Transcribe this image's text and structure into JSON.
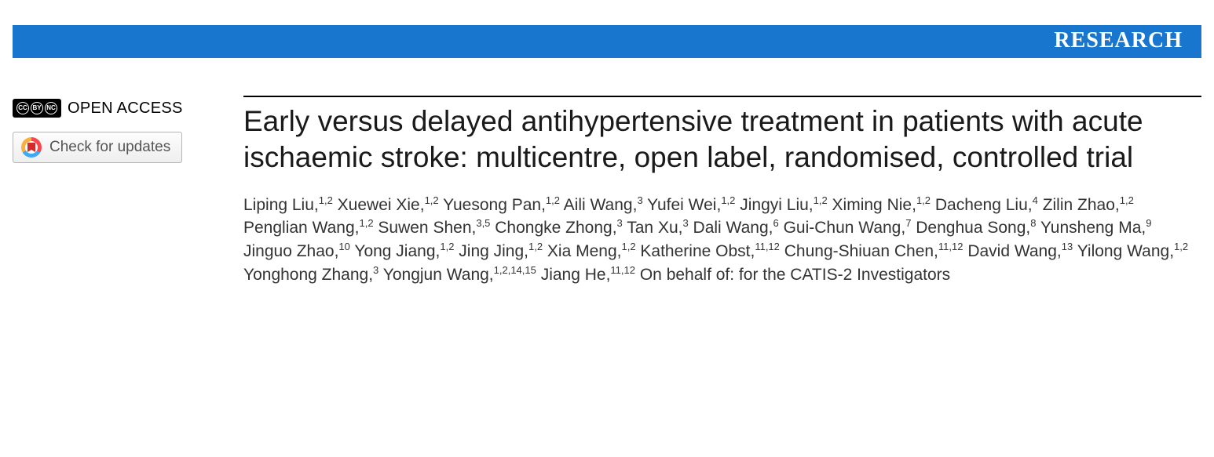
{
  "banner": {
    "label": "RESEARCH",
    "bg_color": "#1876cf",
    "text_color": "#ffffff"
  },
  "sidebar": {
    "open_access_label": "OPEN ACCESS",
    "cc_glyphs": [
      "CC",
      "BY",
      "NC"
    ],
    "updates_button_label": "Check for updates"
  },
  "article": {
    "title": "Early versus delayed antihypertensive treatment in patients with acute ischaemic stroke: multicentre, open label, randomised, controlled trial",
    "authors": [
      {
        "name": "Liping Liu",
        "aff": "1,2"
      },
      {
        "name": "Xuewei Xie",
        "aff": "1,2"
      },
      {
        "name": "Yuesong Pan",
        "aff": "1,2"
      },
      {
        "name": "Aili Wang",
        "aff": "3"
      },
      {
        "name": "Yufei Wei",
        "aff": "1,2"
      },
      {
        "name": "Jingyi Liu",
        "aff": "1,2"
      },
      {
        "name": "Ximing Nie",
        "aff": "1,2"
      },
      {
        "name": "Dacheng Liu",
        "aff": "4"
      },
      {
        "name": "Zilin Zhao",
        "aff": "1,2"
      },
      {
        "name": "Penglian Wang",
        "aff": "1,2"
      },
      {
        "name": "Suwen Shen",
        "aff": "3,5"
      },
      {
        "name": "Chongke Zhong",
        "aff": "3"
      },
      {
        "name": "Tan Xu",
        "aff": "3"
      },
      {
        "name": "Dali Wang",
        "aff": "6"
      },
      {
        "name": "Gui-Chun Wang",
        "aff": "7"
      },
      {
        "name": "Denghua Song",
        "aff": "8"
      },
      {
        "name": "Yunsheng Ma",
        "aff": "9"
      },
      {
        "name": "Jinguo Zhao",
        "aff": "10"
      },
      {
        "name": "Yong Jiang",
        "aff": "1,2"
      },
      {
        "name": "Jing Jing",
        "aff": "1,2"
      },
      {
        "name": "Xia Meng",
        "aff": "1,2"
      },
      {
        "name": "Katherine Obst",
        "aff": "11,12"
      },
      {
        "name": "Chung-Shiuan Chen",
        "aff": "11,12"
      },
      {
        "name": "David Wang",
        "aff": "13"
      },
      {
        "name": "Yilong Wang",
        "aff": "1,2"
      },
      {
        "name": "Yonghong Zhang",
        "aff": "3"
      },
      {
        "name": "Yongjun Wang",
        "aff": "1,2,14,15"
      },
      {
        "name": "Jiang He",
        "aff": "11,12"
      }
    ],
    "on_behalf": "On behalf of: for the CATIS-2 Investigators"
  },
  "style": {
    "title_fontsize": 37,
    "author_fontsize": 21,
    "banner_fontsize": 28,
    "rule_color": "#000000",
    "body_bg": "#ffffff"
  }
}
